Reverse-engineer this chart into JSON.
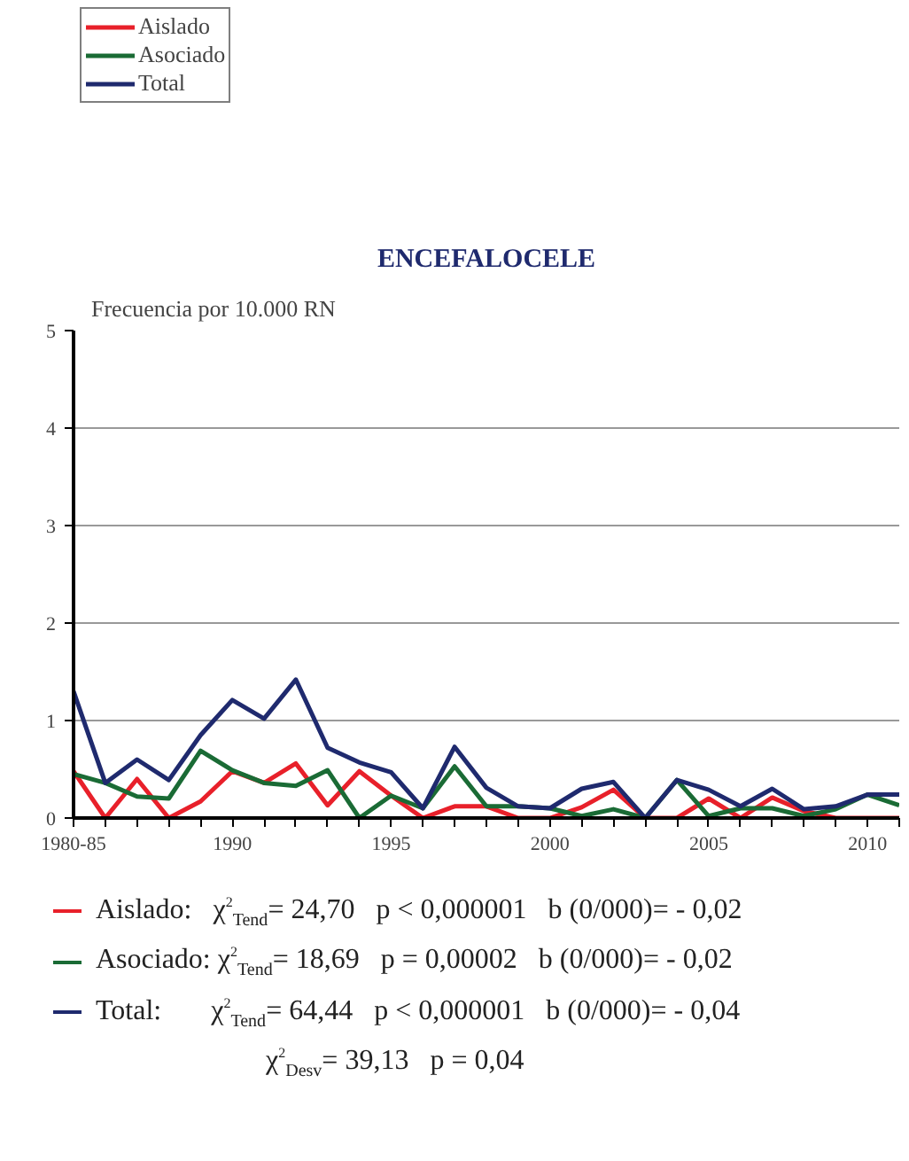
{
  "chart_data": {
    "type": "line",
    "title": "ENCEFALOCELE",
    "ylabel": "Frecuencia por 10.000 RN",
    "x": [
      1985,
      1986,
      1987,
      1988,
      1989,
      1990,
      1991,
      1992,
      1993,
      1994,
      1995,
      1996,
      1997,
      1998,
      1999,
      2000,
      2001,
      2002,
      2003,
      2004,
      2005,
      2006,
      2007,
      2008,
      2009,
      2010,
      2011
    ],
    "series": [
      {
        "name": "Aislado",
        "color": "#e8202a",
        "values": [
          0.48,
          0,
          0.4,
          0,
          0.17,
          0.48,
          0.36,
          0.56,
          0.13,
          0.48,
          0.23,
          0,
          0.12,
          0.12,
          0,
          0,
          0.11,
          0.29,
          0,
          0,
          0.2,
          0,
          0.21,
          0.07,
          0,
          0,
          0
        ]
      },
      {
        "name": "Asociado",
        "color": "#1a6b35",
        "values": [
          0.45,
          0.36,
          0.22,
          0.2,
          0.69,
          0.49,
          0.36,
          0.33,
          0.49,
          0,
          0.23,
          0.1,
          0.53,
          0.12,
          0.12,
          0.1,
          0.02,
          0.09,
          0,
          0.39,
          0.02,
          0.1,
          0.1,
          0.02,
          0.09,
          0.24,
          0.13
        ]
      },
      {
        "name": "Total",
        "color": "#1f2a6e",
        "values": [
          1.3,
          0.36,
          0.6,
          0.39,
          0.85,
          1.21,
          1.02,
          1.42,
          0.72,
          0.57,
          0.47,
          0.1,
          0.73,
          0.31,
          0.12,
          0.1,
          0.3,
          0.37,
          0,
          0.39,
          0.29,
          0.12,
          0.3,
          0.09,
          0.12,
          0.24,
          0.24
        ]
      }
    ],
    "xlim": [
      1985,
      2011
    ],
    "ylim": [
      0,
      5
    ],
    "yticks": [
      0,
      1,
      2,
      3,
      4,
      5
    ],
    "xticks": [
      {
        "value": 1985,
        "label": "1980-85"
      },
      {
        "value": 1986,
        "label": null
      },
      {
        "value": 1987,
        "label": null
      },
      {
        "value": 1988,
        "label": null
      },
      {
        "value": 1989,
        "label": null
      },
      1990,
      {
        "value": 1991,
        "label": null
      },
      {
        "value": 1992,
        "label": null
      },
      {
        "value": 1993,
        "label": null
      },
      {
        "value": 1994,
        "label": null
      },
      1995,
      {
        "value": 1996,
        "label": null
      },
      {
        "value": 1997,
        "label": null
      },
      {
        "value": 1998,
        "label": null
      },
      {
        "value": 1999,
        "label": null
      },
      2000,
      {
        "value": 2001,
        "label": null
      },
      {
        "value": 2002,
        "label": null
      },
      {
        "value": 2003,
        "label": null
      },
      {
        "value": 2004,
        "label": null
      },
      2005,
      {
        "value": 2006,
        "label": null
      },
      {
        "value": 2007,
        "label": null
      },
      {
        "value": 2008,
        "label": null
      },
      {
        "value": 2009,
        "label": null
      },
      2010,
      {
        "value": 2011,
        "label": null
      }
    ],
    "grid": "y",
    "legend": "top left",
    "marker": "none",
    "line_style": "solid",
    "annotations": [
      "Aislado:   χ$^{2}$$_{Tend}$= 24,70   p < 0,000001   b (0/000)= - 0,02",
      "Asociado: χ$^{2}$$_{Tend}$= 18,69   p = 0,00002   b (0/000)= - 0,02",
      "Total:       χ$^{2}$$_{Tend}$= 64,44   p < 0,000001   b (0/000)= - 0,04",
      "χ$^{2}$$_{Desv}$= 39,13   p = 0,04"
    ]
  }
}
